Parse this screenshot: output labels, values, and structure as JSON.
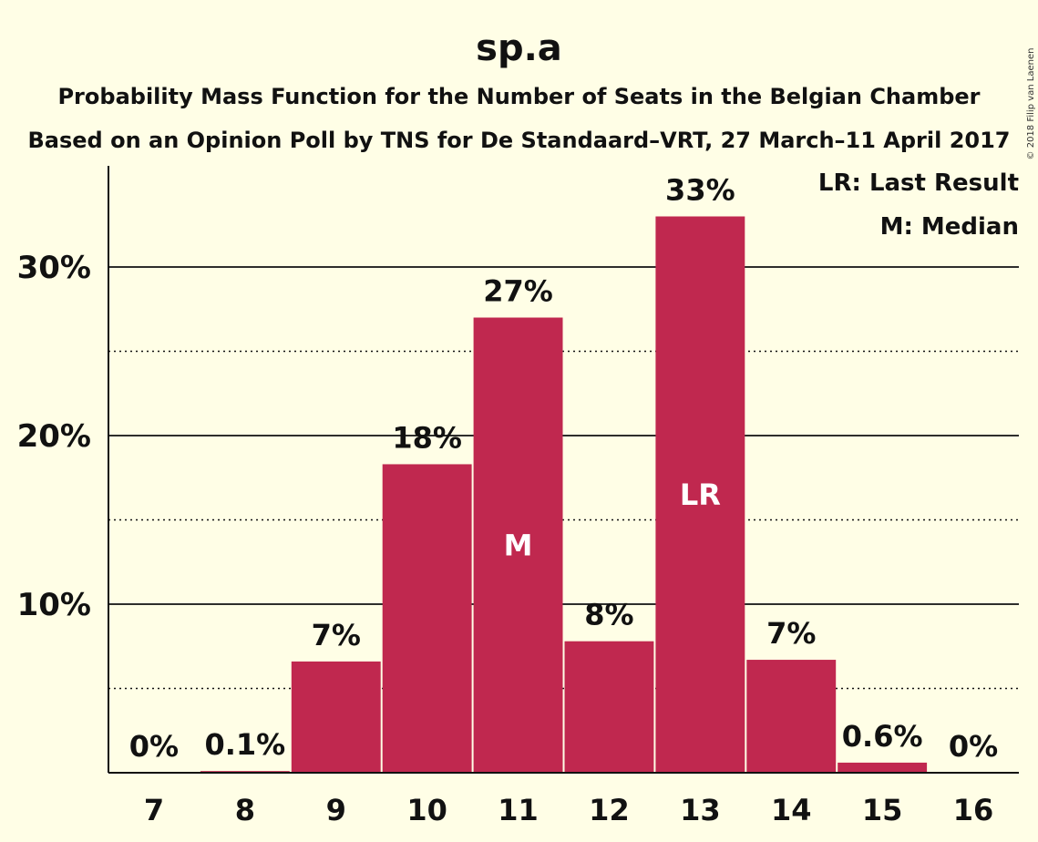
{
  "chart_data": {
    "type": "bar",
    "title": "sp.a",
    "subtitle_lines": [
      "Probability Mass Function for the Number of Seats in the Belgian Chamber",
      "Based on an Opinion Poll by TNS for De Standaard–VRT, 27 March–11 April 2017"
    ],
    "categories": [
      "7",
      "8",
      "9",
      "10",
      "11",
      "12",
      "13",
      "14",
      "15",
      "16"
    ],
    "values": [
      0,
      0.1,
      6.6,
      18.3,
      27.0,
      7.8,
      33.0,
      6.7,
      0.6,
      0
    ],
    "value_labels": [
      "0%",
      "0.1%",
      "7%",
      "18%",
      "27%",
      "8%",
      "33%",
      "7%",
      "0.6%",
      "0%"
    ],
    "bar_markers": [
      {
        "category": "11",
        "text": "M"
      },
      {
        "category": "13",
        "text": "LR"
      }
    ],
    "ylim": [
      0,
      36
    ],
    "yticks": [
      {
        "value": 10,
        "label": "10%"
      },
      {
        "value": 20,
        "label": "20%"
      },
      {
        "value": 30,
        "label": "30%"
      }
    ],
    "minor_gridlines": [
      5,
      15,
      25
    ],
    "grid": true,
    "legend_entries": [
      "LR: Last Result",
      "M: Median"
    ],
    "legend_placement": "top-right",
    "copyright": "© 2018 Filip van Laenen",
    "colors": {
      "background": "#FFFEE6",
      "bar": "#C0284F",
      "text": "#111111",
      "bar_text": "#FFFFFF"
    }
  }
}
